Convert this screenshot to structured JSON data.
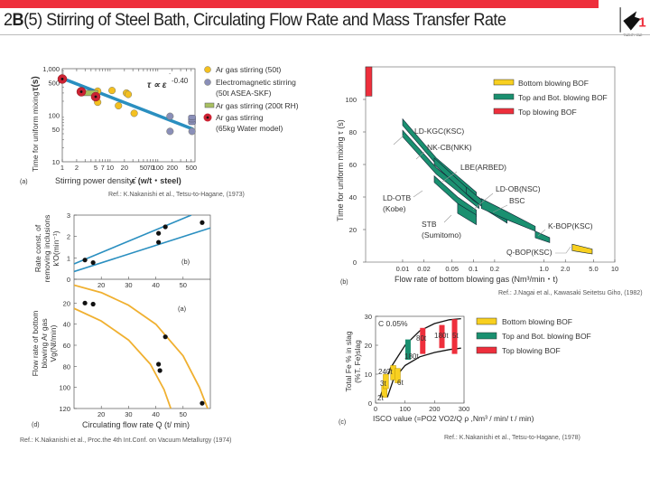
{
  "header": {
    "prefix": "2",
    "section": "B",
    "number": "(5)",
    "title": "Stirring of Steel Bath, Circulating Flow Rate and Mass Transfer Rate",
    "accent_color": "#ee2f3c",
    "logo_icon": "twenty-one-logo",
    "logo_text": "TWENTY ONE",
    "logo_digit": "21"
  },
  "chart_data": [
    {
      "id": "a",
      "type": "scatter",
      "panel_label": "(a)",
      "xlabel": "Stirring power density",
      "xlabel_symbol": "ε̇ (w/t・steel)",
      "ylabel": "Time for uniform mixing",
      "ylabel_symbol": "τ(s)",
      "xscale": "log",
      "yscale": "log",
      "xlim": [
        1,
        600
      ],
      "ylim": [
        10,
        1000
      ],
      "xticks": [
        "1",
        "2",
        "5",
        "7",
        "10",
        "20",
        "50",
        "70",
        "100",
        "200",
        "500"
      ],
      "xtick_values": [
        1,
        2,
        5,
        7,
        10,
        20,
        50,
        70,
        100,
        200,
        500
      ],
      "yticks": [
        "10",
        "50",
        "100",
        "500",
        "1,000"
      ],
      "ytick_values": [
        10,
        50,
        100,
        500,
        1000
      ],
      "annotation": "τ ∝ ε̇ -0.40",
      "fit_line": {
        "x": [
          1,
          550
        ],
        "y": [
          620,
          50
        ],
        "color": "#2a8fc0"
      },
      "series": [
        {
          "name": "Ar gas stirring (50t)",
          "marker": "circle",
          "color": "#f4c020",
          "points": [
            [
              5.5,
              330
            ],
            [
              5.5,
              190
            ],
            [
              11,
              340
            ],
            [
              15,
              160
            ],
            [
              22,
              300
            ],
            [
              24,
              280
            ],
            [
              32,
              110
            ]
          ]
        },
        {
          "name": "Electromagnetic stirring (50t ASEA-SKF)",
          "marker": "circle",
          "color": "#8a8fb8",
          "points": [
            [
              180,
              95
            ],
            [
              180,
              45
            ],
            [
              520,
              45
            ],
            [
              520,
              70
            ],
            [
              520,
              80
            ],
            [
              520,
              90
            ]
          ]
        },
        {
          "name": "Ar gas stirring (200t RH)",
          "marker": "bar",
          "color": "#a8c060",
          "points": [
            [
              2.5,
              300
            ],
            [
              5.5,
              300
            ]
          ]
        },
        {
          "name": "Ar gas stirring (65kg Water model)",
          "marker": "ring",
          "color": "#cc2233",
          "points": [
            [
              1,
              600
            ],
            [
              2.5,
              320
            ],
            [
              5,
              250
            ]
          ]
        }
      ],
      "reference": "Ref.: K.Nakanishi et al., Tetsu-to-Hagane, (1973)"
    },
    {
      "id": "d-top",
      "type": "scatter",
      "panel_label": "(b)",
      "ylabel_lines": [
        "Rate const. of",
        "removing inclusions",
        "k'O(min⁻¹)"
      ],
      "xlim": [
        10,
        60
      ],
      "ylim": [
        0,
        3
      ],
      "yticks": [
        "0",
        "1",
        "2",
        "3"
      ],
      "ytick_values": [
        0,
        1,
        2,
        3
      ],
      "xticks": [
        "20",
        "30",
        "40",
        "50"
      ],
      "xtick_values": [
        20,
        30,
        40,
        50
      ],
      "lines": [
        {
          "x": [
            10,
            53
          ],
          "y": [
            0.72,
            3.0
          ],
          "color": "#2a8fc0"
        },
        {
          "x": [
            10,
            60
          ],
          "y": [
            0.36,
            2.4
          ],
          "color": "#2a8fc0"
        }
      ],
      "points": [
        [
          14,
          0.9
        ],
        [
          17,
          0.78
        ],
        [
          41,
          1.73
        ],
        [
          41,
          2.15
        ],
        [
          43.5,
          2.45
        ],
        [
          57,
          2.65
        ]
      ]
    },
    {
      "id": "d-bottom",
      "type": "scatter",
      "panel_label": "(a)",
      "figure_label": "(d)",
      "xlabel": "Circulating flow rate Q (t/ min)",
      "ylabel_lines": [
        "Flow rate of bottom",
        "blowing Ar gas",
        "Vg(Nℓ/min)"
      ],
      "xlim": [
        10,
        60
      ],
      "ylim": [
        0,
        120
      ],
      "y_inverted": true,
      "yticks": [
        "20",
        "40",
        "60",
        "80",
        "100",
        "120"
      ],
      "ytick_values": [
        20,
        40,
        60,
        80,
        100,
        120
      ],
      "xticks": [
        "20",
        "30",
        "40",
        "50"
      ],
      "xtick_values": [
        20,
        30,
        40,
        50
      ],
      "curves": [
        {
          "x": [
            10,
            20,
            30,
            40,
            50,
            56,
            59
          ],
          "y": [
            3,
            10,
            22,
            40,
            70,
            100,
            120
          ],
          "color": "#f0b030"
        },
        {
          "x": [
            10,
            20,
            30,
            38,
            43,
            45.5
          ],
          "y": [
            25,
            37,
            55,
            78,
            102,
            120
          ],
          "color": "#f0b030"
        }
      ],
      "points": [
        [
          14,
          20
        ],
        [
          17,
          21
        ],
        [
          43.5,
          52
        ],
        [
          41,
          78
        ],
        [
          41.5,
          84
        ],
        [
          57,
          115
        ]
      ],
      "reference": "Ref.: K.Nakanishi et al., Proc.the 4th Int.Conf. on Vacuum Metallurgy (1974)"
    },
    {
      "id": "b",
      "type": "area",
      "panel_label": "(b)",
      "xlabel": "Flow rate of bottom blowing gas (Nm³/min・t)",
      "ylabel": "Time for uniform mixing τ (s)",
      "xscale": "log",
      "xlim": [
        0.003,
        10
      ],
      "ylim": [
        0,
        120
      ],
      "xticks": [
        "0.01",
        "0.02",
        "0.05",
        "0.1",
        "0.2",
        "1.0",
        "2.0",
        "5.0",
        "10"
      ],
      "xtick_values": [
        0.01,
        0.02,
        0.05,
        0.1,
        0.2,
        1.0,
        2.0,
        5.0,
        10
      ],
      "yticks": [
        "0",
        "20",
        "40",
        "60",
        "80",
        "100"
      ],
      "ytick_values": [
        0,
        20,
        40,
        60,
        80,
        100
      ],
      "legend": [
        {
          "name": "Bottom blowing BOF",
          "color": "#f8d020"
        },
        {
          "name": "Top and Bot. blowing BOF",
          "color": "#1a9070"
        },
        {
          "name": "Top blowing BOF",
          "color": "#ee2f3c"
        }
      ],
      "bands": [
        {
          "name": "Top blowing BOF",
          "category": "top",
          "x": [
            0.003,
            0.0035
          ],
          "y_top": [
            120,
            120
          ],
          "y_bot": [
            102,
            102
          ]
        },
        {
          "name": "LD-KGC(KSC)",
          "category": "combined",
          "x": [
            0.01,
            0.03,
            0.11
          ],
          "y_top": [
            88,
            64,
            43
          ],
          "y_bot": [
            84,
            60,
            38
          ]
        },
        {
          "name": "NK-CB(NKK)",
          "category": "combined",
          "x": [
            0.01,
            0.03,
            0.12
          ],
          "y_top": [
            81,
            58,
            37
          ],
          "y_bot": [
            77,
            54,
            33
          ]
        },
        {
          "name": "LBE(ARBED)",
          "category": "combined",
          "x": [
            0.028,
            0.1,
            0.3
          ],
          "y_top": [
            64,
            42,
            28
          ],
          "y_bot": [
            60,
            38,
            24
          ]
        },
        {
          "name": "LD-OB(NSC)",
          "category": "combined",
          "x": [
            0.08,
            0.15,
            0.3
          ],
          "y_top": [
            46,
            36,
            28
          ],
          "y_bot": [
            42,
            32,
            24
          ]
        },
        {
          "name": "LD-OTB (Kobe)",
          "category": "combined",
          "x": [
            0.028,
            0.06,
            0.11
          ],
          "y_top": [
            53,
            40,
            32
          ],
          "y_bot": [
            49,
            36,
            28
          ]
        },
        {
          "name": "STB (Sumitomo)",
          "category": "combined",
          "x": [
            0.06,
            0.11
          ],
          "y_top": [
            36,
            29
          ],
          "y_bot": [
            30,
            23
          ]
        },
        {
          "name": "BSC",
          "category": "combined",
          "x": [
            0.13,
            0.3,
            0.75
          ],
          "y_top": [
            39,
            31,
            22
          ],
          "y_bot": [
            33,
            26,
            19
          ]
        },
        {
          "name": "K-BOP(KSC)",
          "category": "combined",
          "x": [
            0.75,
            1.2
          ],
          "y_top": [
            19,
            15
          ],
          "y_bot": [
            15,
            12
          ]
        },
        {
          "name": "Q-BOP(KSC)",
          "category": "bottom",
          "x": [
            2.5,
            4.8
          ],
          "y_top": [
            11,
            8
          ],
          "y_bot": [
            7,
            5
          ]
        }
      ],
      "labels": [
        {
          "text": "LD-KGC(KSC)"
        },
        {
          "text": "NK-CB(NKK)"
        },
        {
          "text": "LBE(ARBED)"
        },
        {
          "text": "LD-OB(NSC)"
        },
        {
          "text": "BSC"
        },
        {
          "text": "LD-OTB"
        },
        {
          "text": "(Kobe)"
        },
        {
          "text": "STB"
        },
        {
          "text": "(Sumitomo)"
        },
        {
          "text": "K-BOP(KSC)"
        },
        {
          "text": "Q-BOP(KSC)"
        }
      ],
      "reference": "Ref.: J.Nagai et al., Kawasaki Seitetsu Giho, (1982)"
    },
    {
      "id": "c",
      "type": "scatter",
      "panel_label": "(c)",
      "xlabel": "ISCO value (=PO2 VO2/Q ρ ,Nm³ / min/ t / min)",
      "ylabel_lines": [
        "Total Fe % in slag",
        "(%T. Fe)slag"
      ],
      "xlim": [
        0,
        300
      ],
      "ylim": [
        0,
        30
      ],
      "xticks": [
        "0",
        "100",
        "200",
        "300"
      ],
      "xtick_values": [
        0,
        100,
        200,
        300
      ],
      "yticks": [
        "0",
        "10",
        "20",
        "30"
      ],
      "ytick_values": [
        0,
        10,
        20,
        30
      ],
      "annotation": "C 0.05%",
      "legend": [
        {
          "name": "Bottom blowing BOF",
          "color": "#f8d020"
        },
        {
          "name": "Top and Bot. blowing BOF",
          "color": "#1a9070"
        },
        {
          "name": "Top blowing BOF",
          "color": "#ee2f3c"
        }
      ],
      "envelope": [
        {
          "x": [
            15,
            50,
            100,
            150,
            200,
            250,
            290
          ],
          "y": [
            2,
            12,
            20,
            25,
            27.5,
            28.8,
            29.2
          ]
        },
        {
          "x": [
            40,
            60,
            100,
            150,
            200,
            250,
            290
          ],
          "y": [
            2,
            8,
            13,
            16,
            17.5,
            18.5,
            19
          ]
        }
      ],
      "bars": [
        {
          "label": "2t",
          "category": "bottom",
          "x": 30,
          "y": [
            2,
            6
          ]
        },
        {
          "label": "3t",
          "category": "bottom",
          "x": 35,
          "y": [
            5,
            10
          ]
        },
        {
          "label": "240t",
          "category": "bottom",
          "x": 60,
          "y": [
            8,
            13
          ]
        },
        {
          "label": "6t",
          "category": "bottom",
          "x": 75,
          "y": [
            7,
            12
          ]
        },
        {
          "label": "180t",
          "category": "combined",
          "x": 110,
          "y": [
            15,
            22
          ]
        },
        {
          "label": "80t",
          "category": "top",
          "x": 160,
          "y": [
            17,
            26
          ]
        },
        {
          "label": "180t",
          "category": "top",
          "x": 225,
          "y": [
            19,
            27
          ]
        },
        {
          "label": "5t",
          "category": "top",
          "x": 268,
          "y": [
            17,
            29
          ]
        }
      ],
      "reference": "Ref.: K.Nakanishi et al., Tetsu-to-Hagane, (1978)"
    }
  ]
}
